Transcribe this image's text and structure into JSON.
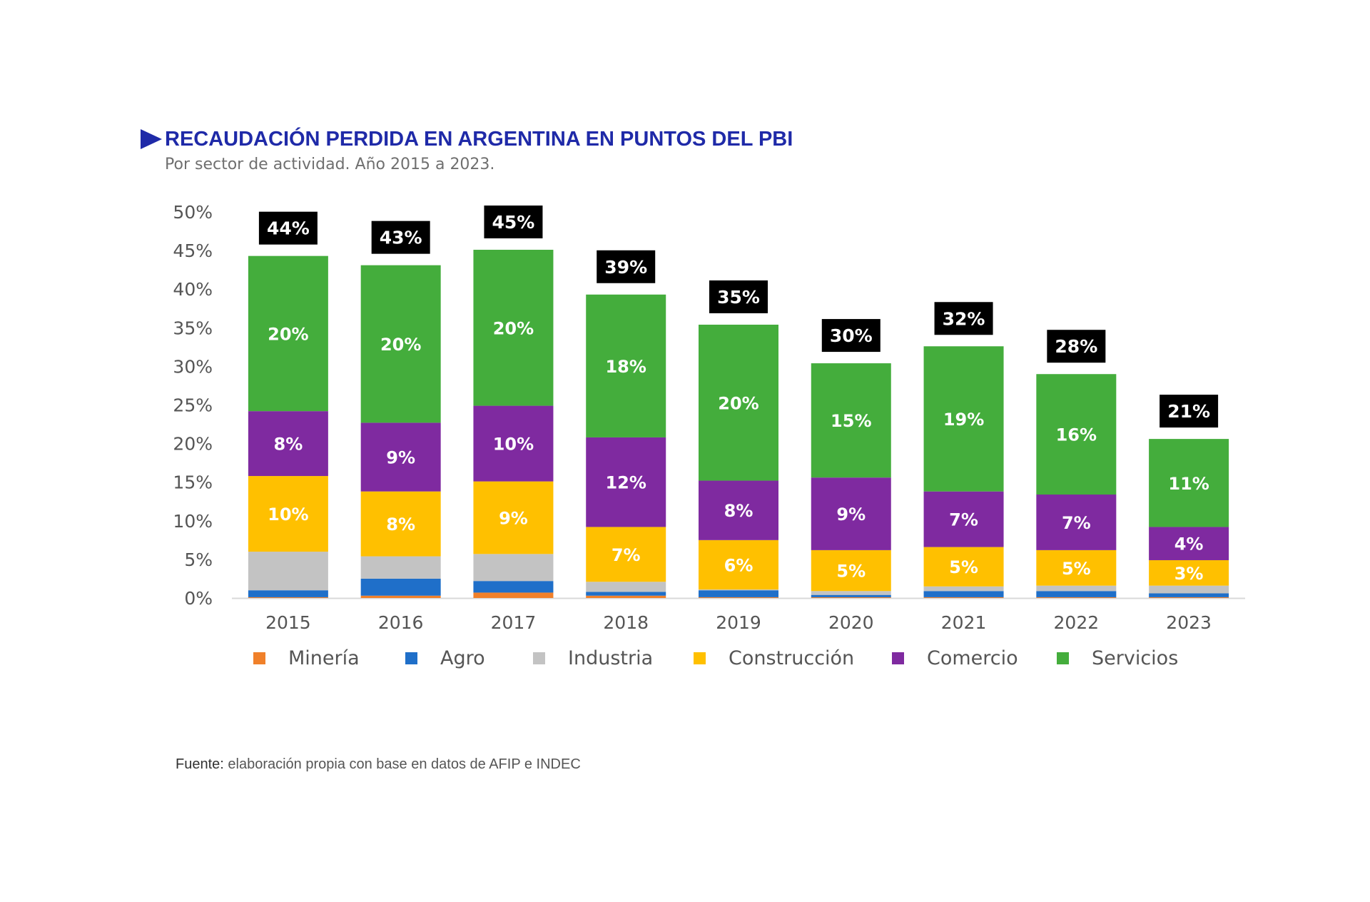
{
  "title": "RECAUDACIÓN PERDIDA EN ARGENTINA EN PUNTOS DEL PBI",
  "subtitle": "Por sector de actividad. Año 2015 a 2023.",
  "source_label": "Fuente:",
  "source_text": " elaboración propia con base en datos de AFIP e INDEC",
  "chart_data": {
    "type": "bar",
    "stacked": true,
    "title": "RECAUDACIÓN PERDIDA EN ARGENTINA EN PUNTOS DEL PBI",
    "subtitle": "Por sector de actividad. Año 2015 a 2023.",
    "categories": [
      "2015",
      "2016",
      "2017",
      "2018",
      "2019",
      "2020",
      "2021",
      "2022",
      "2023"
    ],
    "ylim": [
      0,
      50
    ],
    "yticks": [
      0,
      5,
      10,
      15,
      20,
      25,
      30,
      35,
      40,
      45,
      50
    ],
    "ytick_suffix": "%",
    "grid": false,
    "legend_position": "bottom",
    "series": [
      {
        "name": "Minería",
        "color": "#f0802a",
        "values": [
          0.1,
          0.3,
          0.7,
          0.3,
          0.1,
          0.1,
          0.1,
          0.1,
          0.1
        ],
        "labels": [
          "",
          "",
          "",
          "",
          "",
          "",
          "",
          "",
          ""
        ]
      },
      {
        "name": "Agro",
        "color": "#1f6fc9",
        "values": [
          0.9,
          2.2,
          1.5,
          0.5,
          0.9,
          0.3,
          0.8,
          0.8,
          0.5
        ],
        "labels": [
          "",
          "",
          "",
          "",
          "",
          "",
          "",
          "",
          ""
        ]
      },
      {
        "name": "Industria",
        "color": "#c3c3c3",
        "values": [
          5.0,
          2.9,
          3.5,
          1.3,
          0.1,
          0.5,
          0.6,
          0.7,
          1.0
        ],
        "labels": [
          "",
          "",
          "",
          "",
          "",
          "",
          "",
          "",
          ""
        ]
      },
      {
        "name": "Construcción",
        "color": "#ffc000",
        "values": [
          9.8,
          8.4,
          9.4,
          7.1,
          6.4,
          5.3,
          5.1,
          4.6,
          3.3
        ],
        "labels": [
          "10%",
          "8%",
          "9%",
          "7%",
          "6%",
          "5%",
          "5%",
          "5%",
          "3%"
        ]
      },
      {
        "name": "Comercio",
        "color": "#7f2aa0",
        "values": [
          8.4,
          8.9,
          9.8,
          11.6,
          7.7,
          9.4,
          7.2,
          7.2,
          4.3
        ],
        "labels": [
          "8%",
          "9%",
          "10%",
          "12%",
          "8%",
          "9%",
          "7%",
          "7%",
          "4%"
        ]
      },
      {
        "name": "Servicios",
        "color": "#44ad3c",
        "values": [
          20.1,
          20.4,
          20.2,
          18.5,
          20.2,
          14.8,
          18.8,
          15.6,
          11.4
        ],
        "labels": [
          "20%",
          "20%",
          "20%",
          "18%",
          "20%",
          "15%",
          "19%",
          "16%",
          "11%"
        ]
      }
    ],
    "totals": [
      "44%",
      "43%",
      "45%",
      "39%",
      "35%",
      "30%",
      "32%",
      "28%",
      "21%"
    ]
  }
}
